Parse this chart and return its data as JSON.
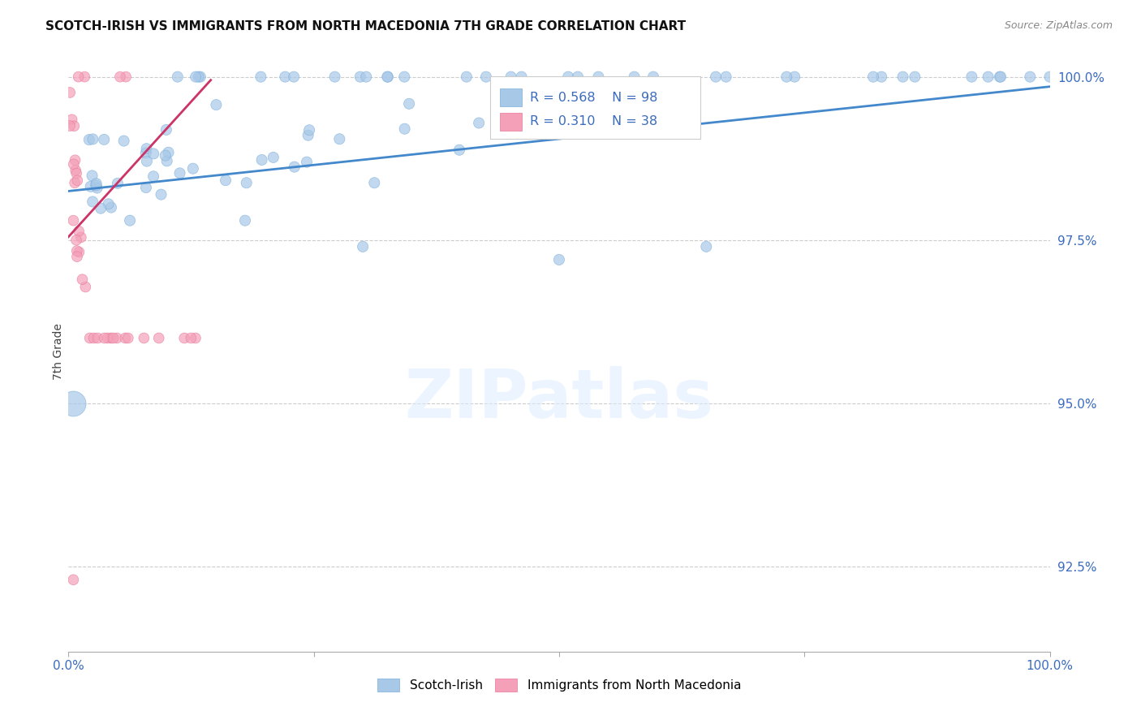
{
  "title": "SCOTCH-IRISH VS IMMIGRANTS FROM NORTH MACEDONIA 7TH GRADE CORRELATION CHART",
  "source": "Source: ZipAtlas.com",
  "ylabel": "7th Grade",
  "xlim": [
    0,
    1.0
  ],
  "ylim": [
    0.912,
    1.004
  ],
  "yticks": [
    0.925,
    0.95,
    0.975,
    1.0
  ],
  "ytick_labels": [
    "92.5%",
    "95.0%",
    "97.5%",
    "100.0%"
  ],
  "xticks": [
    0,
    0.25,
    0.5,
    0.75,
    1.0
  ],
  "xtick_labels": [
    "0.0%",
    "",
    "",
    "",
    "100.0%"
  ],
  "legend_labels": [
    "Scotch-Irish",
    "Immigrants from North Macedonia"
  ],
  "blue_color": "#a8c8e8",
  "blue_edge_color": "#7aaedc",
  "pink_color": "#f4a0b8",
  "pink_edge_color": "#e87898",
  "blue_line_color": "#4488cc",
  "pink_line_color": "#cc3366",
  "grid_color": "#cccccc",
  "watermark": "ZIPatlas",
  "blue_line_x0": 0.0,
  "blue_line_y0": 0.9825,
  "blue_line_x1": 1.0,
  "blue_line_y1": 0.9985,
  "pink_line_x0": 0.0,
  "pink_line_y0": 0.9755,
  "pink_line_x1": 0.145,
  "pink_line_y1": 0.9995
}
